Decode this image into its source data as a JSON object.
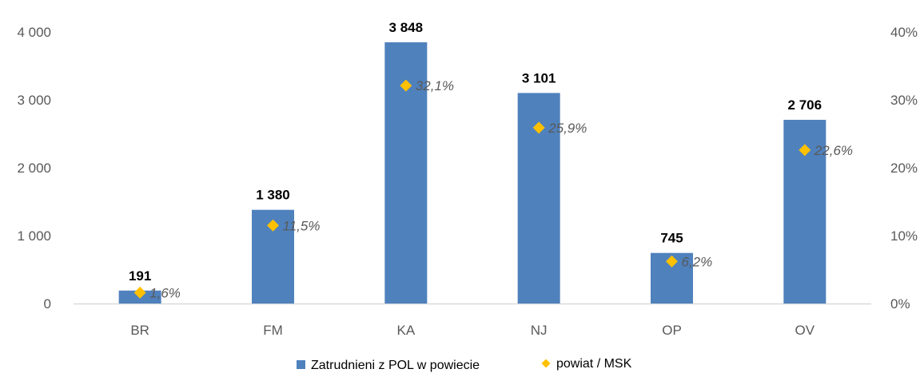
{
  "chart_data": {
    "type": "bar",
    "categories": [
      "BR",
      "FM",
      "KA",
      "NJ",
      "OP",
      "OV"
    ],
    "series": [
      {
        "name": "Zatrudnieni z POL w powiecie",
        "kind": "bar",
        "axis": "left",
        "values": [
          191,
          1380,
          3848,
          3101,
          745,
          2706
        ],
        "labels": [
          "191",
          "1 380",
          "3 848",
          "3 101",
          "745",
          "2 706"
        ],
        "color": "#4f81bd"
      },
      {
        "name": "powiat / MSK",
        "kind": "scatter",
        "marker": "diamond",
        "axis": "right",
        "values": [
          1.6,
          11.5,
          32.1,
          25.9,
          6.2,
          22.6
        ],
        "labels": [
          "1,6%",
          "11,5%",
          "32,1%",
          "25,9%",
          "6,2%",
          "22,6%"
        ],
        "color": "#ffc000"
      }
    ],
    "y_left": {
      "range": [
        0,
        4000
      ],
      "ticks": [
        0,
        1000,
        2000,
        3000,
        4000
      ],
      "tick_labels": [
        "0",
        "1 000",
        "2 000",
        "3 000",
        "4 000"
      ]
    },
    "y_right": {
      "range": [
        0,
        40
      ],
      "ticks": [
        0,
        10,
        20,
        30,
        40
      ],
      "tick_labels": [
        "0%",
        "10%",
        "20%",
        "30%",
        "40%"
      ]
    },
    "grid": false,
    "legend_position": "bottom"
  }
}
